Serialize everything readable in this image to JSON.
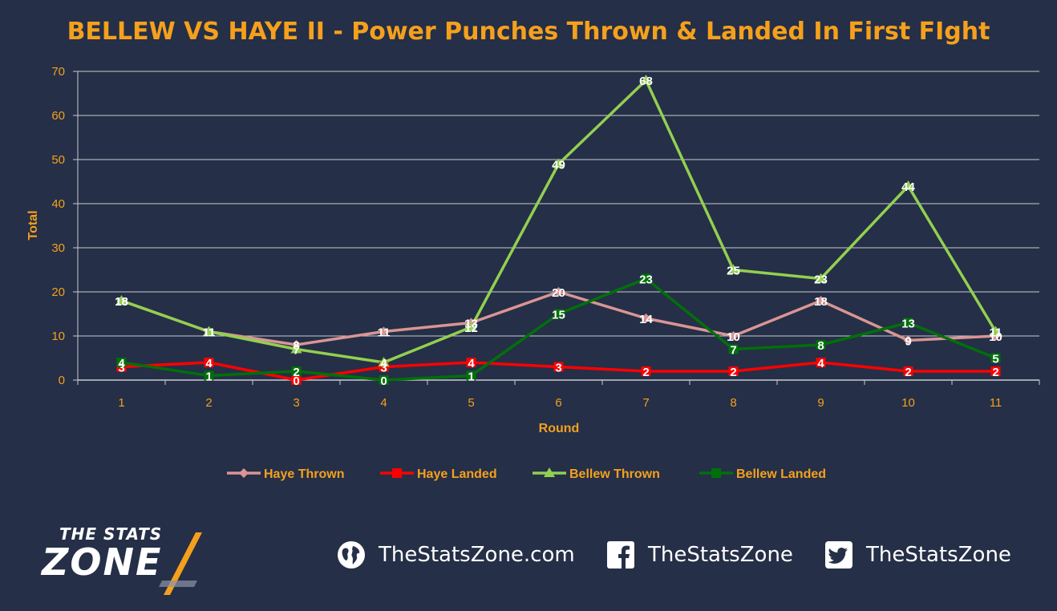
{
  "title": "BELLEW VS HAYE II - Power Punches Thrown & Landed In First FIght",
  "chart_data": {
    "type": "line",
    "title": "BELLEW VS HAYE II - Power Punches Thrown & Landed In First FIght",
    "xlabel": "Round",
    "ylabel": "Total",
    "categories": [
      "1",
      "2",
      "3",
      "4",
      "5",
      "6",
      "7",
      "8",
      "9",
      "10",
      "11"
    ],
    "ylim": [
      0,
      70
    ],
    "yticks": [
      0,
      10,
      20,
      30,
      40,
      50,
      60,
      70
    ],
    "grid": true,
    "legend_position": "bottom",
    "series": [
      {
        "name": "Haye Thrown",
        "color": "#d99594",
        "marker": "diamond",
        "values": [
          18,
          11,
          8,
          11,
          13,
          20,
          14,
          10,
          18,
          9,
          10
        ]
      },
      {
        "name": "Haye Landed",
        "color": "#ff0000",
        "marker": "square",
        "values": [
          3,
          4,
          0,
          3,
          4,
          3,
          2,
          2,
          4,
          2,
          2
        ]
      },
      {
        "name": "Bellew Thrown",
        "color": "#92d050",
        "marker": "triangle",
        "values": [
          18,
          11,
          7,
          4,
          12,
          49,
          68,
          25,
          23,
          44,
          11
        ]
      },
      {
        "name": "Bellew Landed",
        "color": "#00700a",
        "marker": "square",
        "values": [
          4,
          1,
          2,
          0,
          1,
          15,
          23,
          7,
          8,
          13,
          5
        ]
      }
    ]
  },
  "footer": {
    "logo_top": "THE STATS",
    "logo_main": "ZONE",
    "website": "TheStatsZone.com",
    "facebook": "TheStatsZone",
    "twitter": "TheStatsZone",
    "icons": [
      "globe-icon",
      "facebook-icon",
      "twitter-icon"
    ]
  }
}
